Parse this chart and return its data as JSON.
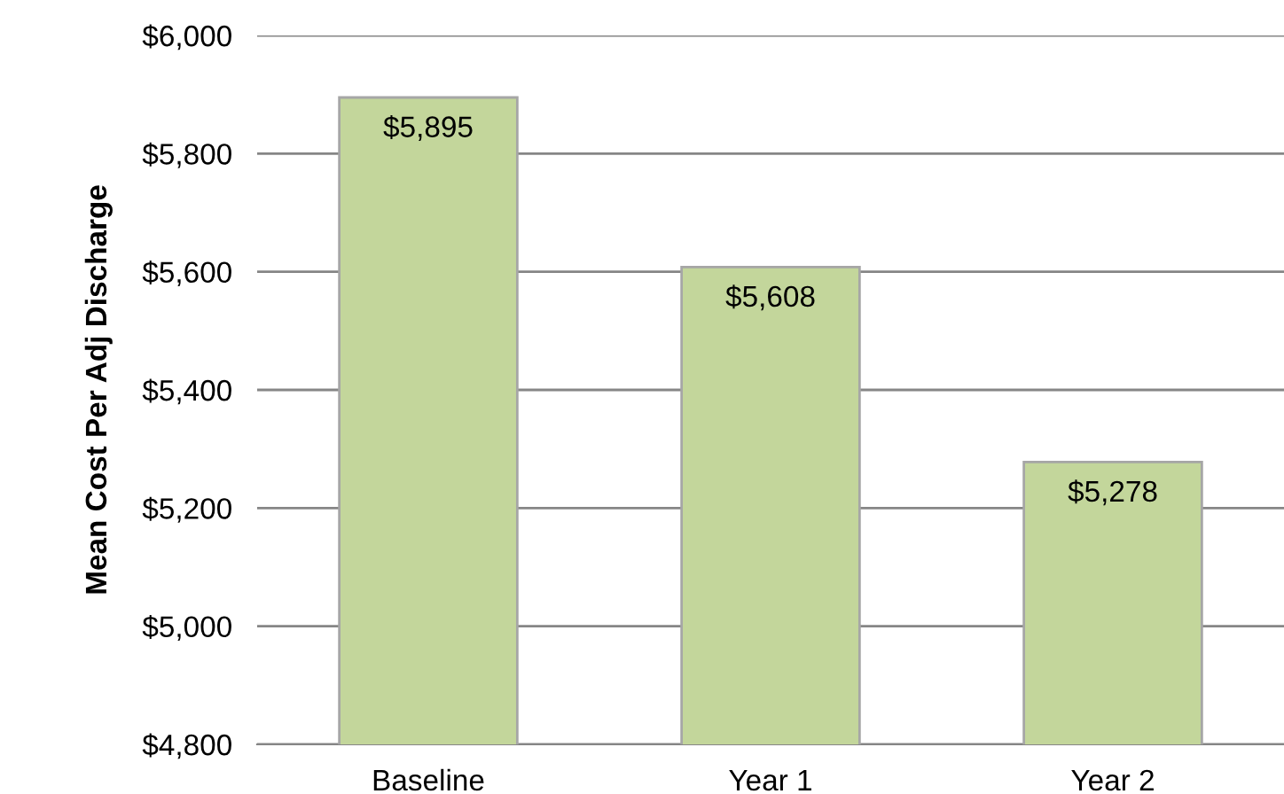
{
  "chart_data": {
    "type": "bar",
    "ylabel": "Mean Cost Per Adj Discharge",
    "categories": [
      "Baseline",
      "Year 1",
      "Year 2"
    ],
    "values": [
      5895,
      5608,
      5278
    ],
    "value_labels": [
      "$5,895",
      "$5,608",
      "$5,278"
    ],
    "color": "#c3d69b",
    "ylim": [
      4800,
      6000
    ],
    "yticks": [
      {
        "value": 4800,
        "label": "$4,800"
      },
      {
        "value": 5000,
        "label": "$5,000"
      },
      {
        "value": 5200,
        "label": "$5,200"
      },
      {
        "value": 5400,
        "label": "$5,400"
      },
      {
        "value": 5600,
        "label": "$5,600"
      },
      {
        "value": 5800,
        "label": "$5,800"
      },
      {
        "value": 6000,
        "label": "$6,000"
      }
    ],
    "grid": "y",
    "legend": false
  }
}
